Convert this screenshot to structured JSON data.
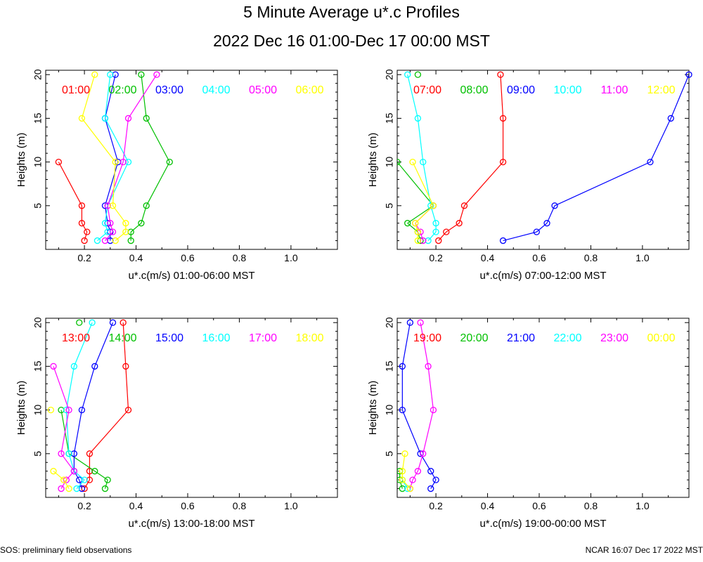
{
  "title": "5 Minute Average u*.c Profiles",
  "subtitle": "2022 Dec 16 01:00-Dec 17 00:00 MST",
  "footer_left": "SOS: preliminary field observations",
  "footer_right": "NCAR 16:07 Dec 17 2022 MST",
  "colors": [
    "#ff0000",
    "#00c000",
    "#0000ff",
    "#00ffff",
    "#ff00ff",
    "#ffff00"
  ],
  "chart_data": [
    {
      "type": "line",
      "xlabel": "u*.c(m/s) 01:00-06:00 MST",
      "ylabel": "Heights (m)",
      "xlim": [
        0.05,
        1.18
      ],
      "ylim": [
        0,
        20.5
      ],
      "xticks": [
        "0.2",
        "0.4",
        "0.6",
        "0.8",
        "1.0"
      ],
      "yticks": [
        "5",
        "10",
        "15",
        "20"
      ],
      "heights": [
        1,
        2,
        3,
        5,
        10,
        15,
        20
      ],
      "series": [
        {
          "name": "01:00",
          "values": [
            0.2,
            0.21,
            0.19,
            0.19,
            0.1,
            null,
            null
          ]
        },
        {
          "name": "02:00",
          "values": [
            0.38,
            0.38,
            0.42,
            0.44,
            0.53,
            0.44,
            0.42
          ]
        },
        {
          "name": "03:00",
          "values": [
            0.3,
            0.3,
            0.29,
            0.28,
            0.33,
            0.28,
            0.32
          ]
        },
        {
          "name": "04:00",
          "values": [
            0.25,
            0.29,
            0.28,
            0.29,
            0.37,
            0.28,
            0.3
          ]
        },
        {
          "name": "05:00",
          "values": [
            0.28,
            0.31,
            0.3,
            0.29,
            0.35,
            0.37,
            0.48
          ]
        },
        {
          "name": "06:00",
          "values": [
            0.32,
            0.36,
            0.36,
            0.31,
            0.32,
            0.19,
            0.24
          ]
        }
      ]
    },
    {
      "type": "line",
      "xlabel": "u*.c(m/s) 07:00-12:00 MST",
      "ylabel": "Heights (m)",
      "xlim": [
        0.05,
        1.18
      ],
      "ylim": [
        0,
        20.5
      ],
      "xticks": [
        "0.2",
        "0.4",
        "0.6",
        "0.8",
        "1.0"
      ],
      "yticks": [
        "5",
        "10",
        "15",
        "20"
      ],
      "heights": [
        1,
        2,
        3,
        5,
        10,
        15,
        20
      ],
      "series": [
        {
          "name": "07:00",
          "values": [
            0.21,
            0.24,
            0.29,
            0.31,
            0.46,
            0.46,
            0.45
          ]
        },
        {
          "name": "08:00",
          "values": [
            0.14,
            0.13,
            0.09,
            0.19,
            0.05,
            null,
            0.13
          ]
        },
        {
          "name": "09:00",
          "values": [
            0.46,
            0.59,
            0.63,
            0.66,
            1.03,
            1.11,
            1.18
          ]
        },
        {
          "name": "10:00",
          "values": [
            0.17,
            0.2,
            0.2,
            0.18,
            0.15,
            0.13,
            0.09
          ]
        },
        {
          "name": "11:00",
          "values": [
            0.15,
            0.14,
            0.12,
            0.19,
            null,
            null,
            null
          ]
        },
        {
          "name": "12:00",
          "values": [
            0.13,
            0.13,
            0.12,
            0.19,
            0.11,
            null,
            null
          ]
        }
      ]
    },
    {
      "type": "line",
      "xlabel": "u*.c(m/s) 13:00-18:00 MST",
      "ylabel": "Heights (m)",
      "xlim": [
        0.05,
        1.18
      ],
      "ylim": [
        0,
        20.5
      ],
      "xticks": [
        "0.2",
        "0.4",
        "0.6",
        "0.8",
        "1.0"
      ],
      "yticks": [
        "5",
        "10",
        "15",
        "20"
      ],
      "heights": [
        1,
        2,
        3,
        5,
        10,
        15,
        20
      ],
      "series": [
        {
          "name": "13:00",
          "values": [
            0.2,
            0.22,
            0.22,
            0.22,
            0.37,
            0.36,
            0.35
          ]
        },
        {
          "name": "14:00",
          "values": [
            0.28,
            0.29,
            0.24,
            0.14,
            0.11,
            null,
            0.18
          ]
        },
        {
          "name": "15:00",
          "values": [
            0.19,
            0.18,
            0.16,
            0.16,
            0.19,
            0.24,
            0.31
          ]
        },
        {
          "name": "16:00",
          "values": [
            0.17,
            0.2,
            0.16,
            0.14,
            0.13,
            0.16,
            0.23
          ]
        },
        {
          "name": "17:00",
          "values": [
            0.11,
            0.13,
            0.16,
            0.11,
            0.14,
            0.08,
            null
          ]
        },
        {
          "name": "18:00",
          "values": [
            0.14,
            0.12,
            0.08,
            null,
            0.07,
            null,
            null
          ]
        }
      ]
    },
    {
      "type": "line",
      "xlabel": "u*.c(m/s) 19:00-00:00 MST",
      "ylabel": "Heights (m)",
      "xlim": [
        0.05,
        1.18
      ],
      "ylim": [
        0,
        20.5
      ],
      "xticks": [
        "0.2",
        "0.4",
        "0.6",
        "0.8",
        "1.0"
      ],
      "yticks": [
        "5",
        "10",
        "15",
        "20"
      ],
      "heights": [
        1,
        2,
        3,
        5,
        10,
        15,
        20
      ],
      "series": [
        {
          "name": "19:00",
          "values": [
            null,
            null,
            null,
            null,
            null,
            null,
            null
          ]
        },
        {
          "name": "20:00",
          "values": [
            0.07,
            0.06,
            0.06,
            null,
            null,
            null,
            null
          ]
        },
        {
          "name": "21:00",
          "values": [
            0.18,
            0.2,
            0.18,
            0.14,
            0.07,
            0.07,
            0.1
          ]
        },
        {
          "name": "22:00",
          "values": [
            0.09,
            0.07,
            null,
            null,
            null,
            null,
            null
          ]
        },
        {
          "name": "23:00",
          "values": [
            0.1,
            0.11,
            0.13,
            0.15,
            0.19,
            0.17,
            0.14
          ]
        },
        {
          "name": "00:00",
          "values": [
            0.1,
            0.07,
            0.07,
            0.08,
            null,
            null,
            null
          ]
        }
      ]
    }
  ]
}
